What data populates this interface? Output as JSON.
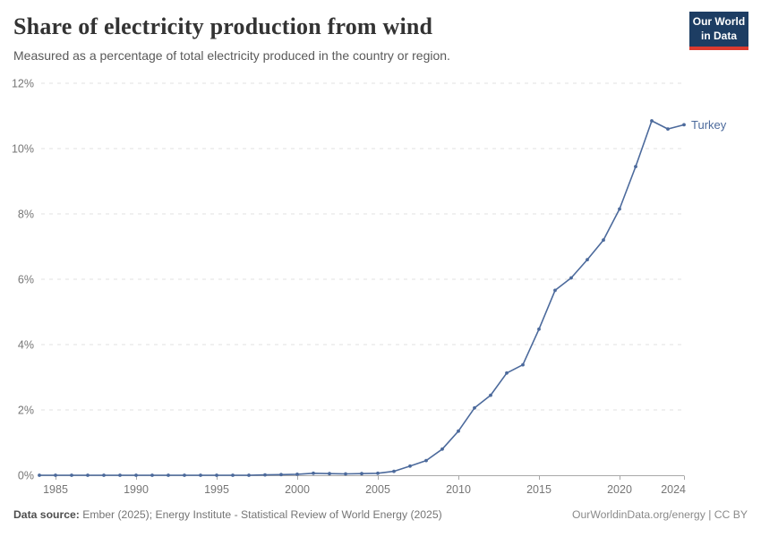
{
  "header": {
    "title": "Share of electricity production from wind",
    "subtitle": "Measured as a percentage of total electricity produced in the country or region."
  },
  "logo": {
    "line1": "Our World",
    "line2": "in Data",
    "bg_color": "#1d3d63",
    "bar_color": "#dc3a2f"
  },
  "chart_data": {
    "type": "line",
    "title": "Share of electricity production from wind",
    "xlabel": "",
    "ylabel": "",
    "xlim": [
      1984,
      2024
    ],
    "ylim": [
      0,
      12
    ],
    "yticks": [
      0,
      2,
      4,
      6,
      8,
      10,
      12
    ],
    "ytick_suffix": "%",
    "xticks": [
      1985,
      1990,
      1995,
      2000,
      2005,
      2010,
      2015,
      2020,
      2024
    ],
    "grid": "horizontal-dashed",
    "legend_position": "end-of-line-label",
    "series": [
      {
        "name": "Turkey",
        "color": "#4c6a9c",
        "x": [
          1984,
          1985,
          1986,
          1987,
          1988,
          1989,
          1990,
          1991,
          1992,
          1993,
          1994,
          1995,
          1996,
          1997,
          1998,
          1999,
          2000,
          2001,
          2002,
          2003,
          2004,
          2005,
          2006,
          2007,
          2008,
          2009,
          2010,
          2011,
          2012,
          2013,
          2014,
          2015,
          2016,
          2017,
          2018,
          2019,
          2020,
          2021,
          2022,
          2023,
          2024
        ],
        "values": [
          0,
          0,
          0,
          0,
          0,
          0,
          0,
          0,
          0,
          0,
          0,
          0,
          0,
          0,
          0.01,
          0.02,
          0.03,
          0.06,
          0.05,
          0.04,
          0.05,
          0.06,
          0.12,
          0.28,
          0.45,
          0.8,
          1.35,
          2.06,
          2.45,
          3.13,
          3.38,
          4.47,
          5.66,
          6.04,
          6.6,
          7.2,
          8.15,
          9.45,
          10.85,
          10.6,
          10.73
        ]
      }
    ],
    "colors": {
      "gridline": "#e2e2e2",
      "axis_line": "#a8a8a8",
      "tick_label": "#767676"
    }
  },
  "footer": {
    "source_label": "Data source:",
    "source_text": " Ember (2025); Energy Institute - Statistical Review of World Energy (2025)",
    "credit": "OurWorldinData.org/energy | CC BY"
  }
}
